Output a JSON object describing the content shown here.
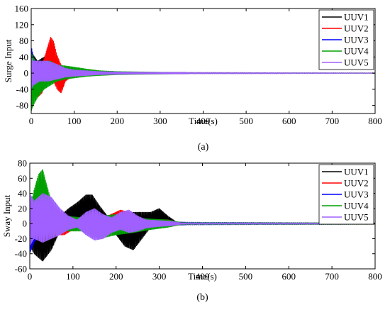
{
  "chart_data": [
    {
      "type": "line",
      "panel_label": "(a)",
      "xlabel": "Time(s)",
      "ylabel": "Surge Input",
      "xlim": [
        0,
        800
      ],
      "ylim": [
        -100,
        160
      ],
      "x_ticks": [
        0,
        100,
        200,
        300,
        400,
        500,
        600,
        700,
        800
      ],
      "y_ticks": [
        -80,
        -40,
        0,
        40,
        80,
        120,
        160
      ],
      "grid": false,
      "legend_position": "top-right",
      "series": [
        {
          "name": "UUV1",
          "color": "#000000",
          "envelope": [
            [
              0,
              -95,
              60
            ],
            [
              5,
              -60,
              45
            ],
            [
              15,
              -35,
              30
            ],
            [
              30,
              -15,
              40
            ],
            [
              45,
              -25,
              30
            ],
            [
              60,
              -15,
              15
            ],
            [
              80,
              -10,
              10
            ],
            [
              100,
              -8,
              8
            ],
            [
              130,
              -5,
              5
            ],
            [
              160,
              -4,
              4
            ],
            [
              200,
              -3,
              3
            ],
            [
              260,
              -2,
              2
            ],
            [
              320,
              -1.5,
              1.5
            ],
            [
              400,
              -1,
              1
            ],
            [
              800,
              -0.5,
              0.5
            ]
          ]
        },
        {
          "name": "UUV2",
          "color": "#ff0000",
          "envelope": [
            [
              0,
              -50,
              60
            ],
            [
              5,
              -40,
              30
            ],
            [
              15,
              -60,
              15
            ],
            [
              25,
              -50,
              20
            ],
            [
              35,
              -25,
              55
            ],
            [
              45,
              -10,
              90
            ],
            [
              52,
              -20,
              80
            ],
            [
              60,
              -40,
              45
            ],
            [
              70,
              -50,
              20
            ],
            [
              80,
              -20,
              8
            ],
            [
              95,
              -8,
              8
            ],
            [
              130,
              -5,
              5
            ],
            [
              200,
              -3,
              3
            ],
            [
              300,
              -2,
              2
            ],
            [
              800,
              -0.5,
              0.5
            ]
          ]
        },
        {
          "name": "UUV3",
          "color": "#0000ff",
          "envelope": [
            [
              0,
              -50,
              70
            ],
            [
              5,
              -30,
              40
            ],
            [
              15,
              -20,
              25
            ],
            [
              30,
              -15,
              15
            ],
            [
              60,
              -10,
              10
            ],
            [
              100,
              -5,
              5
            ],
            [
              160,
              -3,
              3
            ],
            [
              250,
              -2,
              2
            ],
            [
              800,
              -0.5,
              0.5
            ]
          ]
        },
        {
          "name": "UUV4",
          "color": "#00a000",
          "envelope": [
            [
              0,
              -95,
              50
            ],
            [
              5,
              -80,
              40
            ],
            [
              15,
              -60,
              20
            ],
            [
              30,
              -40,
              30
            ],
            [
              45,
              -30,
              30
            ],
            [
              60,
              -20,
              20
            ],
            [
              80,
              -15,
              18
            ],
            [
              100,
              -12,
              15
            ],
            [
              130,
              -8,
              10
            ],
            [
              160,
              -6,
              6
            ],
            [
              200,
              -4,
              4
            ],
            [
              260,
              -3,
              3
            ],
            [
              350,
              -1.5,
              1.5
            ],
            [
              800,
              -0.5,
              0.5
            ]
          ]
        },
        {
          "name": "UUV5",
          "color": "#a060ff",
          "envelope": [
            [
              0,
              -40,
              40
            ],
            [
              5,
              -30,
              30
            ],
            [
              20,
              -20,
              30
            ],
            [
              40,
              -20,
              30
            ],
            [
              60,
              -15,
              22
            ],
            [
              80,
              -10,
              12
            ],
            [
              100,
              -8,
              8
            ],
            [
              130,
              -6,
              6
            ],
            [
              160,
              -4,
              4
            ],
            [
              200,
              -3,
              3
            ],
            [
              300,
              -2,
              2
            ],
            [
              800,
              -0.5,
              0.5
            ]
          ]
        }
      ]
    },
    {
      "type": "line",
      "panel_label": "(b)",
      "xlabel": "Time(s)",
      "ylabel": "Sway Input",
      "xlim": [
        0,
        800
      ],
      "ylim": [
        -60,
        80
      ],
      "x_ticks": [
        0,
        100,
        200,
        300,
        400,
        500,
        600,
        700,
        800
      ],
      "y_ticks": [
        -60,
        -40,
        -20,
        0,
        20,
        40,
        60,
        80
      ],
      "grid": false,
      "legend_position": "top-right",
      "series": [
        {
          "name": "UUV1",
          "color": "#000000",
          "envelope": [
            [
              0,
              -30,
              20
            ],
            [
              10,
              -40,
              15
            ],
            [
              30,
              -50,
              10
            ],
            [
              50,
              -35,
              8
            ],
            [
              70,
              -10,
              10
            ],
            [
              90,
              5,
              20
            ],
            [
              110,
              0,
              28
            ],
            [
              130,
              2,
              38
            ],
            [
              145,
              0,
              38
            ],
            [
              160,
              -10,
              25
            ],
            [
              180,
              -8,
              10
            ],
            [
              200,
              -15,
              5
            ],
            [
              220,
              -30,
              10
            ],
            [
              240,
              -35,
              15
            ],
            [
              260,
              -20,
              15
            ],
            [
              280,
              -5,
              15
            ],
            [
              300,
              0,
              20
            ],
            [
              320,
              -3,
              10
            ],
            [
              340,
              -2,
              2
            ],
            [
              400,
              -1.5,
              1.5
            ],
            [
              800,
              -1,
              1
            ]
          ]
        },
        {
          "name": "UUV2",
          "color": "#ff0000",
          "envelope": [
            [
              0,
              -20,
              25
            ],
            [
              10,
              -15,
              20
            ],
            [
              30,
              -10,
              10
            ],
            [
              60,
              -15,
              5
            ],
            [
              80,
              -15,
              8
            ],
            [
              100,
              -8,
              5
            ],
            [
              120,
              -3,
              3
            ],
            [
              150,
              -2,
              5
            ],
            [
              180,
              -3,
              10
            ],
            [
              210,
              -5,
              18
            ],
            [
              230,
              -10,
              15
            ],
            [
              260,
              -8,
              5
            ],
            [
              290,
              -5,
              5
            ],
            [
              320,
              -2,
              5
            ],
            [
              350,
              -1,
              1
            ],
            [
              800,
              -1,
              1
            ]
          ]
        },
        {
          "name": "UUV3",
          "color": "#0000ff",
          "envelope": [
            [
              0,
              -40,
              25
            ],
            [
              10,
              -25,
              20
            ],
            [
              30,
              -10,
              10
            ],
            [
              60,
              -5,
              5
            ],
            [
              120,
              -4,
              4
            ],
            [
              200,
              -3,
              3
            ],
            [
              300,
              -2,
              2
            ],
            [
              800,
              -0.8,
              0.8
            ]
          ]
        },
        {
          "name": "UUV4",
          "color": "#00a000",
          "envelope": [
            [
              0,
              -30,
              20
            ],
            [
              10,
              -15,
              45
            ],
            [
              20,
              -10,
              65
            ],
            [
              30,
              -5,
              72
            ],
            [
              40,
              -10,
              50
            ],
            [
              55,
              -15,
              20
            ],
            [
              80,
              -10,
              10
            ],
            [
              120,
              -10,
              8
            ],
            [
              160,
              -20,
              10
            ],
            [
              200,
              -15,
              12
            ],
            [
              240,
              -12,
              8
            ],
            [
              280,
              -8,
              6
            ],
            [
              320,
              -5,
              5
            ],
            [
              350,
              -1.5,
              1.5
            ],
            [
              800,
              -1,
              1
            ]
          ]
        },
        {
          "name": "UUV5",
          "color": "#a060ff",
          "envelope": [
            [
              0,
              -30,
              40
            ],
            [
              10,
              -20,
              30
            ],
            [
              30,
              -25,
              40
            ],
            [
              50,
              -20,
              35
            ],
            [
              70,
              -15,
              20
            ],
            [
              90,
              -8,
              10
            ],
            [
              110,
              -5,
              5
            ],
            [
              130,
              -15,
              15
            ],
            [
              150,
              -22,
              20
            ],
            [
              170,
              -20,
              12
            ],
            [
              190,
              -12,
              8
            ],
            [
              210,
              -8,
              15
            ],
            [
              230,
              -12,
              18
            ],
            [
              250,
              -10,
              10
            ],
            [
              270,
              -6,
              5
            ],
            [
              300,
              -4,
              4
            ],
            [
              330,
              -3,
              3
            ],
            [
              350,
              -1,
              1
            ],
            [
              800,
              -0.6,
              0.6
            ]
          ]
        }
      ]
    }
  ]
}
